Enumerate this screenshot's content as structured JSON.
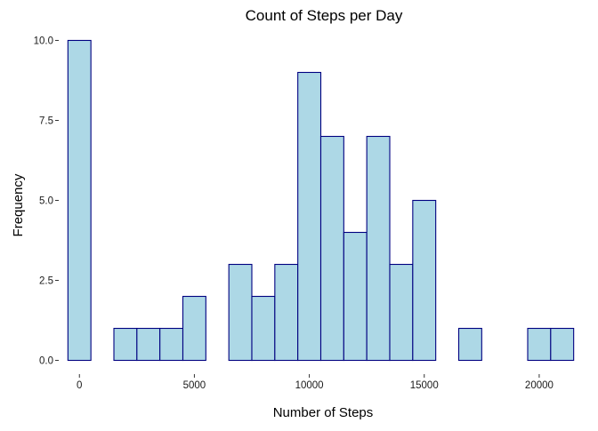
{
  "chart_data": {
    "type": "bar",
    "title": "Count of Steps per Day",
    "xlabel": "Number of Steps",
    "ylabel": "Frequency",
    "bin_width": 1000,
    "xlim": [
      -500,
      21500
    ],
    "ylim": [
      0,
      10
    ],
    "x_ticks": [
      0,
      5000,
      10000,
      15000,
      20000
    ],
    "x_tick_labels": [
      "0",
      "5000",
      "10000",
      "15000",
      "20000"
    ],
    "y_ticks": [
      0,
      2.5,
      5,
      7.5,
      10
    ],
    "y_tick_labels": [
      "0.0",
      "2.5",
      "5.0",
      "7.5",
      "10.0"
    ],
    "bins": [
      {
        "start": -500,
        "end": 500,
        "count": 10
      },
      {
        "start": 1500,
        "end": 2500,
        "count": 1
      },
      {
        "start": 2500,
        "end": 3500,
        "count": 1
      },
      {
        "start": 3500,
        "end": 4500,
        "count": 1
      },
      {
        "start": 4500,
        "end": 5500,
        "count": 2
      },
      {
        "start": 6500,
        "end": 7500,
        "count": 3
      },
      {
        "start": 7500,
        "end": 8500,
        "count": 2
      },
      {
        "start": 8500,
        "end": 9500,
        "count": 3
      },
      {
        "start": 9500,
        "end": 10500,
        "count": 9
      },
      {
        "start": 10500,
        "end": 11500,
        "count": 7
      },
      {
        "start": 11500,
        "end": 12500,
        "count": 4
      },
      {
        "start": 12500,
        "end": 13500,
        "count": 7
      },
      {
        "start": 13500,
        "end": 14500,
        "count": 3
      },
      {
        "start": 14500,
        "end": 15500,
        "count": 5
      },
      {
        "start": 16500,
        "end": 17500,
        "count": 1
      },
      {
        "start": 19500,
        "end": 20500,
        "count": 1
      },
      {
        "start": 20500,
        "end": 21500,
        "count": 1
      }
    ],
    "bar_fill": "#add8e6",
    "bar_stroke": "#000080",
    "grid": false,
    "legend": "none"
  }
}
